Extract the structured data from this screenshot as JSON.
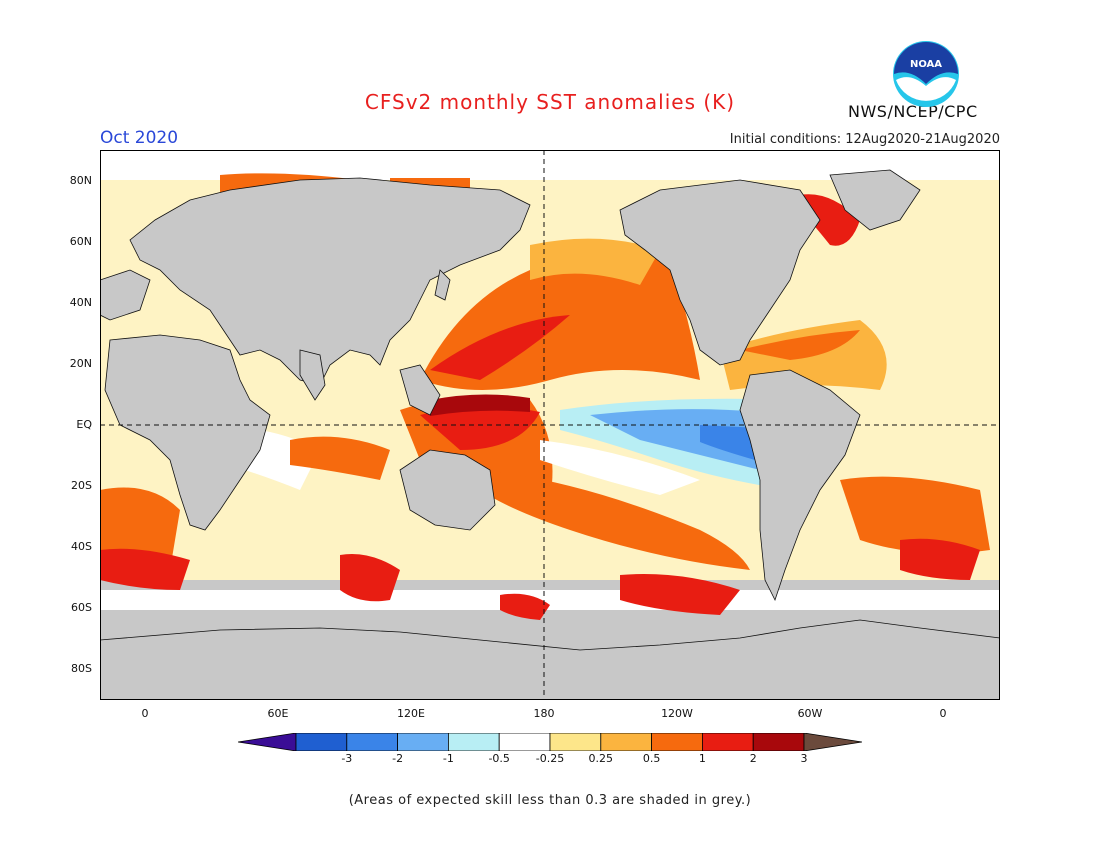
{
  "header": {
    "title": "CFSv2 monthly SST anomalies (K)",
    "month": "Oct 2020",
    "initial_conditions": "Initial conditions: 12Aug2020-21Aug2020",
    "agency": "NWS/NCEP/CPC",
    "logo_text": "NOAA"
  },
  "map": {
    "lat_labels": [
      "80N",
      "60N",
      "40N",
      "20N",
      "EQ",
      "20S",
      "40S",
      "60S",
      "80S"
    ],
    "lon_labels": [
      "0",
      "60E",
      "120E",
      "180",
      "120W",
      "60W",
      "0"
    ],
    "land_color": "#c8c8c8"
  },
  "colorbar": {
    "labels": [
      "-3",
      "-2",
      "-1",
      "-0.5",
      "-0.25",
      "0.25",
      "0.5",
      "1",
      "2",
      "3"
    ],
    "colors": [
      "#3a0d96",
      "#1f5fd1",
      "#3a84e8",
      "#68aef3",
      "#b8eef4",
      "#ffffff",
      "#fde68a",
      "#fbb43f",
      "#f66a0e",
      "#e81d12",
      "#a8080c",
      "#6b4a3c"
    ]
  },
  "footnote": "(Areas of expected skill less than 0.3 are shaded in grey.)"
}
